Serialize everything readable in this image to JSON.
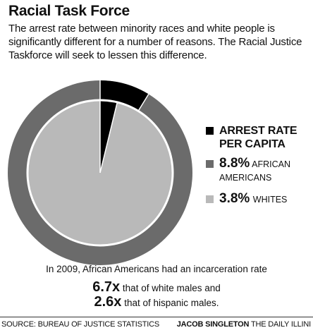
{
  "header": {
    "title": "Racial Task Force",
    "subtitle": "The arrest rate between minority races and white people is significantly different for a number of reasons. The Racial Justice Taskforce will seek to lessen this difference."
  },
  "chart_data": {
    "type": "pie",
    "title": "ARREST RATE PER CAPITA",
    "series": [
      {
        "name": "AFRICAN AMERICANS",
        "value": 8.8,
        "value_label": "8.8%",
        "max": 100,
        "color": "#6b6b6b",
        "track_color": "#6b6b6b"
      },
      {
        "name": "WHITES",
        "value": 3.8,
        "value_label": "3.8%",
        "max": 100,
        "color": "#b9b9b9",
        "track_color": "#b9b9b9"
      }
    ],
    "highlight_color": "#000000",
    "legend_position": "right"
  },
  "legend": {
    "title_color": "#000000"
  },
  "notes": {
    "line1": "In 2009, African Americans had an incarceration rate",
    "line2_value": "6.7x",
    "line2_text": "that of white males and",
    "line3_value": "2.6x",
    "line3_text": "that of hispanic males."
  },
  "footer": {
    "source": "SOURCE: BUREAU OF JUSTICE STATISTICS",
    "author": "JACOB SINGLETON",
    "publication": "THE DAILY ILLINI"
  }
}
